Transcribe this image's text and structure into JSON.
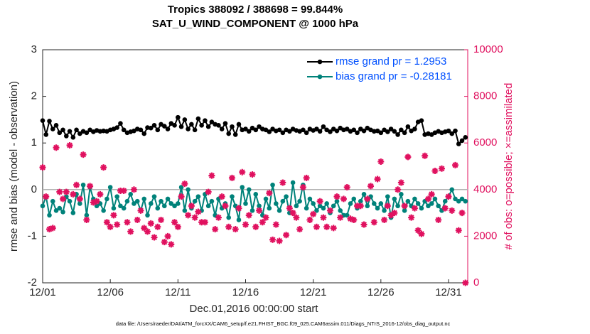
{
  "chart_data": {
    "type": "line",
    "title": "Tropics 388092 / 388698 = 99.844%",
    "subtitle": "SAT_U_WIND_COMPONENT @ 1000 hPa",
    "ylabel": "rmse and bias (model - observation)",
    "y2label": "# of obs: o=possible; ×=assimilated",
    "xlabel": "Dec.01,2016 00:00:00 start",
    "footnote": "data file: /Users/raeder/DAI/ATM_forcXX/CAM6_setup/f.e21.FHIST_BGC.f09_025.CAM6assim.011/Diags_NTrS_2016-12/obs_diag_output.nc",
    "xlim": [
      0,
      31.42
    ],
    "xticks": [
      {
        "value": 0,
        "label": "12/01"
      },
      {
        "value": 5,
        "label": "12/06"
      },
      {
        "value": 10,
        "label": "12/11"
      },
      {
        "value": 15,
        "label": "12/16"
      },
      {
        "value": 20,
        "label": "12/21"
      },
      {
        "value": 25,
        "label": "12/26"
      },
      {
        "value": 30,
        "label": "12/31"
      }
    ],
    "ylim": [
      -2,
      3
    ],
    "yticks": [
      -2,
      -1,
      0,
      1,
      2,
      3
    ],
    "y2lim": [
      0,
      10000
    ],
    "y2ticks": [
      0,
      2000,
      4000,
      6000,
      8000,
      10000
    ],
    "legend": "northeast",
    "x": [
      0,
      0.25,
      0.5,
      0.75,
      1,
      1.25,
      1.5,
      1.75,
      2,
      2.25,
      2.5,
      2.75,
      3,
      3.25,
      3.5,
      3.75,
      4,
      4.25,
      4.5,
      4.75,
      5,
      5.25,
      5.5,
      5.75,
      6,
      6.25,
      6.5,
      6.75,
      7,
      7.25,
      7.5,
      7.75,
      8,
      8.25,
      8.5,
      8.75,
      9,
      9.25,
      9.5,
      9.75,
      10,
      10.25,
      10.5,
      10.75,
      11,
      11.25,
      11.5,
      11.75,
      12,
      12.25,
      12.5,
      12.75,
      13,
      13.25,
      13.5,
      13.75,
      14,
      14.25,
      14.5,
      14.75,
      15,
      15.25,
      15.5,
      15.75,
      16,
      16.25,
      16.5,
      16.75,
      17,
      17.25,
      17.5,
      17.75,
      18,
      18.25,
      18.5,
      18.75,
      19,
      19.25,
      19.5,
      19.75,
      20,
      20.25,
      20.5,
      20.75,
      21,
      21.25,
      21.5,
      21.75,
      22,
      22.25,
      22.5,
      22.75,
      23,
      23.25,
      23.5,
      23.75,
      24,
      24.25,
      24.5,
      24.75,
      25,
      25.25,
      25.5,
      25.75,
      26,
      26.25,
      26.5,
      26.75,
      27,
      27.25,
      27.5,
      27.75,
      28,
      28.25,
      28.5,
      28.75,
      29,
      29.25,
      29.5,
      29.75,
      30,
      30.25,
      30.5,
      30.75,
      31,
      31.25
    ],
    "series": [
      {
        "name": "rmse grand pr = 1.2953",
        "color": "#000000",
        "marker": "circle",
        "values": [
          1.48,
          1.18,
          1.47,
          1.3,
          1.38,
          1.22,
          1.28,
          1.15,
          1.25,
          1.12,
          1.28,
          1.2,
          1.25,
          1.22,
          1.28,
          1.24,
          1.27,
          1.25,
          1.26,
          1.25,
          1.28,
          1.3,
          1.33,
          1.42,
          1.28,
          1.22,
          1.24,
          1.26,
          1.3,
          1.28,
          1.2,
          1.33,
          1.32,
          1.38,
          1.28,
          1.4,
          1.36,
          1.3,
          1.42,
          1.38,
          1.55,
          1.35,
          1.5,
          1.3,
          1.4,
          1.28,
          1.52,
          1.38,
          1.48,
          1.35,
          1.45,
          1.4,
          1.38,
          1.3,
          1.42,
          1.2,
          1.35,
          1.18,
          1.4,
          1.28,
          1.3,
          1.25,
          1.32,
          1.28,
          1.35,
          1.3,
          1.28,
          1.24,
          1.3,
          1.26,
          1.28,
          1.22,
          1.28,
          1.25,
          1.3,
          1.27,
          1.25,
          1.28,
          1.22,
          1.3,
          1.27,
          1.3,
          1.25,
          1.35,
          1.28,
          1.24,
          1.3,
          1.26,
          1.32,
          1.28,
          1.3,
          1.25,
          1.28,
          1.22,
          1.3,
          1.26,
          1.32,
          1.28,
          1.25,
          1.26,
          1.22,
          1.28,
          1.24,
          1.3,
          1.25,
          1.18,
          1.28,
          1.22,
          1.35,
          1.26,
          1.3,
          1.45,
          1.48,
          1.18,
          1.2,
          1.18,
          1.22,
          1.25,
          1.22,
          1.24,
          1.26,
          1.2,
          1.26,
          0.98,
          1.05,
          1.12
        ]
      },
      {
        "name": "bias grand pr = -0.28181",
        "color": "#00827a",
        "marker": "circle",
        "values": [
          -0.35,
          -0.15,
          -0.55,
          -0.25,
          -0.45,
          -0.4,
          -0.48,
          -0.15,
          -0.25,
          -0.5,
          -0.1,
          -0.3,
          0.1,
          -0.55,
          0.05,
          -0.2,
          -0.35,
          -0.3,
          -0.45,
          -0.2,
          0.05,
          -0.4,
          -0.15,
          -0.35,
          -0.4,
          -0.25,
          -0.1,
          -0.3,
          -0.25,
          -0.45,
          -0.2,
          -0.55,
          -0.3,
          -0.15,
          -0.4,
          -0.25,
          -0.35,
          -0.2,
          -0.3,
          -0.35,
          -0.3,
          0.05,
          -0.45,
          0.0,
          -0.4,
          -0.25,
          -0.15,
          -0.45,
          -0.1,
          -0.35,
          -0.25,
          -0.55,
          -0.2,
          -0.4,
          -0.3,
          -0.6,
          -0.15,
          -0.35,
          -0.65,
          0.05,
          -0.3,
          0.0,
          -0.45,
          -0.1,
          -0.35,
          -0.55,
          -0.2,
          -0.4,
          0.1,
          -0.3,
          -0.45,
          -0.25,
          -0.15,
          -0.5,
          0.15,
          -0.35,
          -0.25,
          0.1,
          -0.4,
          -0.2,
          -0.3,
          -0.45,
          -0.35,
          -0.4,
          -0.3,
          -0.5,
          -0.35,
          -0.25,
          -0.45,
          -0.55,
          -0.55,
          -0.3,
          -0.2,
          -0.4,
          -0.25,
          -0.1,
          -0.35,
          -0.15,
          -0.3,
          -0.4,
          -0.3,
          -0.45,
          -0.15,
          -0.6,
          -0.2,
          -0.35,
          -0.1,
          -0.45,
          -0.25,
          -0.35,
          -0.2,
          -0.3,
          -0.4,
          -0.25,
          -0.35,
          -0.3,
          -0.2,
          -0.35,
          -0.45,
          -0.25,
          -0.15,
          0.0,
          -0.2,
          -0.25,
          -0.2,
          -0.25
        ]
      },
      {
        "color": "#e0115f",
        "marker": "star",
        "axis": "y2",
        "values": [
          4950,
          3700,
          2300,
          2350,
          5800,
          3900,
          3600,
          3900,
          5900,
          3800,
          4200,
          3600,
          5500,
          2700,
          4150,
          3450,
          3500,
          3800,
          4950,
          2600,
          2400,
          2900,
          2500,
          3950,
          3950,
          2600,
          2200,
          4000,
          2700,
          3100,
          2350,
          2200,
          2550,
          1950,
          2400,
          2700,
          1750,
          2000,
          1650,
          2600,
          2400,
          3700,
          4250,
          2900,
          3300,
          2800,
          3050,
          2600,
          2600,
          3900,
          4600,
          2300,
          2800,
          3700,
          3300,
          2400,
          4500,
          2300,
          3200,
          4750,
          2500,
          2900,
          4650,
          2400,
          3100,
          2600,
          2800,
          3850,
          1850,
          2500,
          1800,
          4300,
          2050,
          3200,
          3000,
          2800,
          2300,
          4100,
          4500,
          2700,
          2950,
          2400,
          3500,
          2800,
          2400,
          3100,
          2350,
          3700,
          2800,
          3600,
          4100,
          2750,
          2700,
          3300,
          3300,
          2500,
          3600,
          4150,
          2600,
          4450,
          5200,
          2700,
          3300,
          2900,
          3000,
          4000,
          4300,
          3300,
          5400,
          2800,
          3200,
          2250,
          2100,
          5450,
          3600,
          3800,
          4800,
          2700,
          4900,
          3200,
          3700,
          3100,
          5050,
          2250,
          3000,
          0
        ]
      }
    ]
  }
}
